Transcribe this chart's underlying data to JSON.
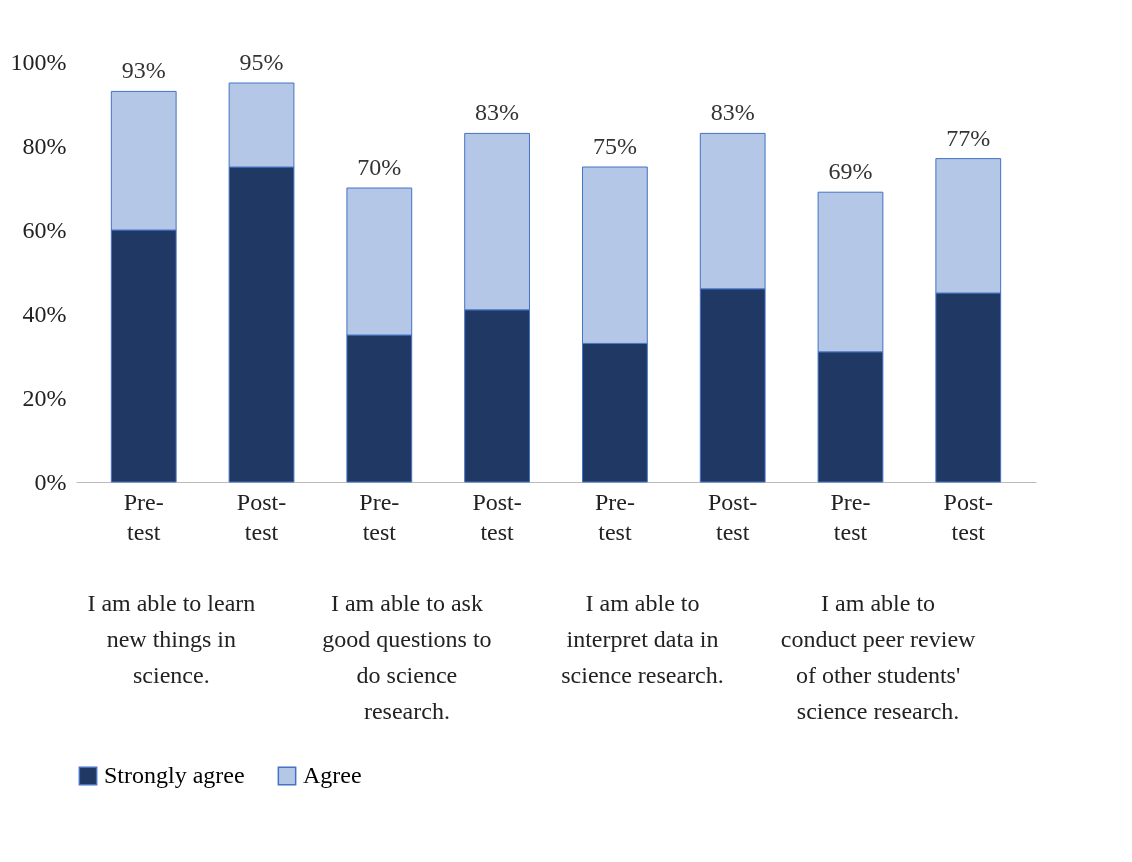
{
  "chart_data": {
    "type": "bar",
    "stacked": true,
    "categories": [
      "Pre-test",
      "Post-test",
      "Pre-test",
      "Post-test",
      "Pre-test",
      "Post-test",
      "Pre-test",
      "Post-test"
    ],
    "series": [
      {
        "name": "Strongly agree",
        "color": "#203864",
        "values": [
          60,
          75,
          35,
          41,
          33,
          46,
          31,
          45
        ]
      },
      {
        "name": "Agree",
        "color": "#b4c7e7",
        "values": [
          33,
          20,
          35,
          42,
          42,
          37,
          38,
          32
        ]
      }
    ],
    "totals": [
      "93%",
      "95%",
      "70%",
      "83%",
      "75%",
      "83%",
      "69%",
      "77%"
    ],
    "annotations": [
      "I am able to learn new things in science.",
      "I am able to ask good questions to do science research.",
      "I am able to interpret data in science research.",
      "I am able to conduct peer review of other students' science research."
    ],
    "ylim": [
      0,
      100
    ],
    "yticks": [
      {
        "value": 0,
        "label": "0%"
      },
      {
        "value": 20,
        "label": "20%"
      },
      {
        "value": 40,
        "label": "40%"
      },
      {
        "value": 60,
        "label": "60%"
      },
      {
        "value": 80,
        "label": "80%"
      },
      {
        "value": 100,
        "label": "100%"
      }
    ],
    "grid": false,
    "legend": "bottom"
  }
}
